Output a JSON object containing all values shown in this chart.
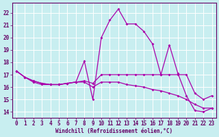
{
  "xlabel": "Windchill (Refroidissement éolien,°C)",
  "background_color": "#c8eef0",
  "line_color": "#aa00aa",
  "x_values": [
    0,
    1,
    2,
    3,
    4,
    5,
    6,
    7,
    8,
    9,
    10,
    11,
    12,
    13,
    14,
    15,
    16,
    17,
    18,
    19,
    20,
    21,
    22,
    23
  ],
  "series1": [
    17.3,
    16.8,
    16.4,
    16.2,
    16.2,
    16.2,
    16.3,
    16.4,
    18.1,
    15.0,
    20.0,
    21.4,
    22.3,
    21.1,
    21.1,
    20.5,
    19.5,
    17.0,
    19.4,
    17.1,
    15.3,
    14.1,
    14.0,
    14.3
  ],
  "series2": [
    17.3,
    16.8,
    16.5,
    16.3,
    16.2,
    16.2,
    16.3,
    16.4,
    16.5,
    16.3,
    17.0,
    17.0,
    17.0,
    17.0,
    17.0,
    17.0,
    17.0,
    17.0,
    17.0,
    17.0,
    17.0,
    15.5,
    15.0,
    15.3
  ],
  "series3": [
    17.3,
    16.8,
    16.5,
    16.3,
    16.2,
    16.2,
    16.3,
    16.4,
    16.4,
    16.0,
    16.4,
    16.4,
    16.4,
    16.2,
    16.1,
    16.0,
    15.8,
    15.7,
    15.5,
    15.3,
    15.0,
    14.6,
    14.3,
    14.3
  ],
  "ylim": [
    13.5,
    22.8
  ],
  "yticks": [
    14,
    15,
    16,
    17,
    18,
    19,
    20,
    21,
    22
  ],
  "xticks": [
    0,
    1,
    2,
    3,
    4,
    5,
    6,
    7,
    8,
    9,
    10,
    11,
    12,
    13,
    14,
    15,
    16,
    17,
    18,
    19,
    20,
    21,
    22,
    23
  ]
}
